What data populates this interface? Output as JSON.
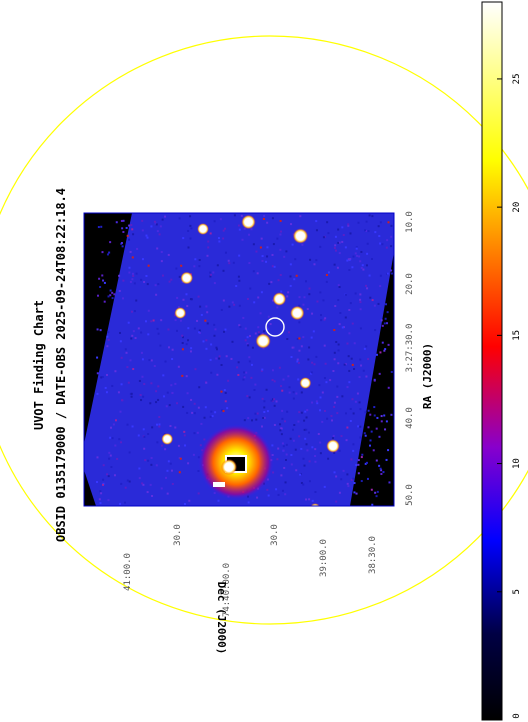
{
  "chart_data": {
    "type": "heatmap",
    "title": "UVOT Finding Chart",
    "subtitle": "OBSID 0135179000 / DATE-OBS 2025-09-24T08:22:18.4",
    "xlabel": "RA (J2000)",
    "ylabel": "Dec (J2000)",
    "ra_ticks": [
      "50.0",
      "40.0",
      "3:27:30.0",
      "20.0",
      "10.0"
    ],
    "dec_ticks": [
      "41:00.0",
      "30.0",
      "74:40:00.0",
      "30.0",
      "39:00.0",
      "38:30.0"
    ],
    "colorbar": {
      "ticks": [
        "0",
        "5",
        "10",
        "15",
        "20",
        "25"
      ],
      "range": [
        0,
        28
      ]
    },
    "target_marker": "circle",
    "sources": [
      {
        "ra": "3:27:47",
        "dec": "74:40:00",
        "brightness": 28
      },
      {
        "ra": "3:27:14",
        "dec": "74:39:16",
        "brightness": 26
      },
      {
        "ra": "3:27:12",
        "dec": "74:39:48",
        "brightness": 24
      },
      {
        "ra": "3:27:29",
        "dec": "74:39:39",
        "brightness": 26
      },
      {
        "ra": "3:27:25",
        "dec": "74:39:18",
        "brightness": 24
      },
      {
        "ra": "3:27:23",
        "dec": "74:39:29",
        "brightness": 22
      },
      {
        "ra": "3:27:35",
        "dec": "74:39:13",
        "brightness": 18
      },
      {
        "ra": "3:27:44",
        "dec": "74:38:56",
        "brightness": 22
      },
      {
        "ra": "3:27:20",
        "dec": "74:40:26",
        "brightness": 20
      },
      {
        "ra": "3:27:13",
        "dec": "74:40:16",
        "brightness": 18
      },
      {
        "ra": "3:27:25",
        "dec": "74:40:30",
        "brightness": 18
      },
      {
        "ra": "3:27:43",
        "dec": "74:40:38",
        "brightness": 18
      },
      {
        "ra": "3:27:53",
        "dec": "74:39:07",
        "brightness": 18
      }
    ],
    "colors": {
      "frame": "#0000c8",
      "field_circle": "#ffff00",
      "target_circle": "#ffffff",
      "outside": "#000000"
    }
  }
}
